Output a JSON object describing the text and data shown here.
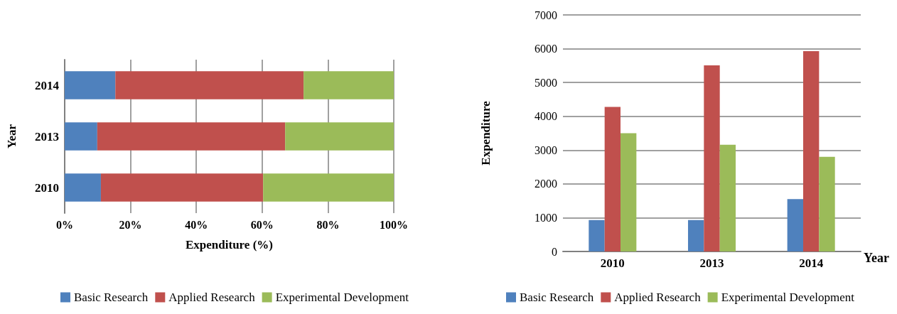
{
  "chart_data": [
    {
      "type": "bar",
      "orientation": "horizontal",
      "stacked": true,
      "xlabel": "Expenditure (%)",
      "ylabel": "Year",
      "categories": [
        "2014",
        "2013",
        "2010"
      ],
      "series": [
        {
          "name": "Basic Research",
          "color": "#4f81bd",
          "values": [
            15.4,
            9.9,
            11.0
          ]
        },
        {
          "name": "Applied Research",
          "color": "#c0504d",
          "values": [
            57.2,
            57.1,
            49.3
          ]
        },
        {
          "name": "Experimental Development",
          "color": "#9bbb59",
          "values": [
            27.4,
            33.0,
            39.7
          ]
        }
      ],
      "xlim": [
        0,
        100
      ],
      "xticks": [
        {
          "value": 0,
          "label": "0%"
        },
        {
          "value": 20,
          "label": "20%"
        },
        {
          "value": 40,
          "label": "40%"
        },
        {
          "value": 60,
          "label": "60%"
        },
        {
          "value": 80,
          "label": "80%"
        },
        {
          "value": 100,
          "label": "100%"
        }
      ],
      "grid": "x",
      "legend": "bottom"
    },
    {
      "type": "bar",
      "xlabel": "Year",
      "ylabel": "Expenditure",
      "categories": [
        "2010",
        "2013",
        "2014"
      ],
      "series": [
        {
          "name": "Basic Research",
          "color": "#4f81bd",
          "values": [
            930,
            930,
            1550
          ]
        },
        {
          "name": "Applied Research",
          "color": "#c0504d",
          "values": [
            4280,
            5510,
            5930
          ]
        },
        {
          "name": "Experimental Development",
          "color": "#9bbb59",
          "values": [
            3500,
            3160,
            2800
          ]
        }
      ],
      "ylim": [
        0,
        7000
      ],
      "yticks": [
        0,
        1000,
        2000,
        3000,
        4000,
        5000,
        6000,
        7000
      ],
      "grid": "y",
      "legend": "bottom"
    }
  ]
}
